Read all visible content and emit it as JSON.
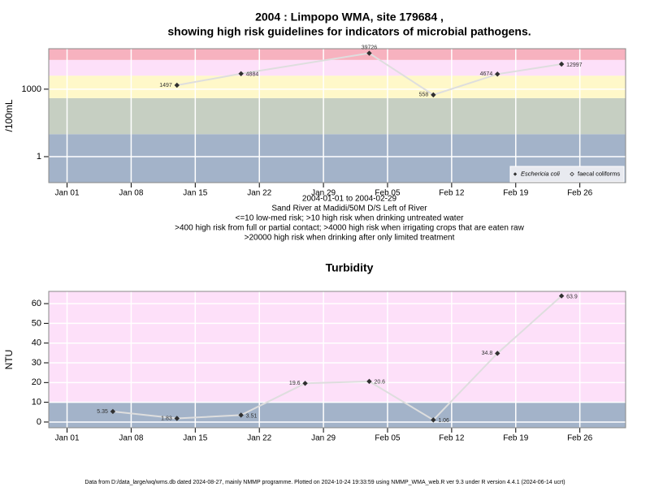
{
  "chart_data": [
    {
      "type": "line",
      "title": [
        "2004 : Limpopo WMA, site 179684 ,",
        "showing high risk guidelines for indicators of microbial pathogens."
      ],
      "notes": [
        "2004-01-01 to 2004-02-29",
        "Sand River at Madidi/50M D/S Left of River",
        "<=10 low-med risk; >10 high risk when drinking untreated water",
        ">400 high risk from full or partial contact; >4000 high risk when irrigating crops that are eaten raw",
        ">20000 high risk when drinking after only limited treatment"
      ],
      "y_label": "/100mL",
      "x": [
        "2004-01-13",
        "2004-01-20",
        "2004-02-03",
        "2004-02-10",
        "2004-02-17",
        "2004-02-24"
      ],
      "series": [
        {
          "name": "Eschericia coli",
          "color": "#303030",
          "values": [
            1497,
            4884,
            39726,
            558,
            4674,
            12997
          ]
        },
        {
          "name": "faecal coliforms",
          "color": "#303030",
          "values": [
            null,
            null,
            null,
            null,
            null,
            null
          ]
        }
      ],
      "line_color": "#dedede",
      "log_y": true,
      "ylim": [
        0.07,
        63000
      ],
      "yticks": [
        1,
        1000
      ],
      "thresholds": [
        10,
        400,
        4000,
        20000
      ],
      "band_colors": [
        "#a3b3c9",
        "#c6cfc2",
        "#fff8c9",
        "#fde0f9",
        "#f7b2bf"
      ],
      "xlim": [
        "2003-12-30",
        "2004-03-02"
      ],
      "xticks": [
        {
          "value": "2004-01-01",
          "label": "Jan 01"
        },
        {
          "value": "2004-01-08",
          "label": "Jan 08"
        },
        {
          "value": "2004-01-15",
          "label": "Jan 15"
        },
        {
          "value": "2004-01-22",
          "label": "Jan 22"
        },
        {
          "value": "2004-01-29",
          "label": "Jan 29"
        },
        {
          "value": "2004-02-05",
          "label": "Feb 05"
        },
        {
          "value": "2004-02-12",
          "label": "Feb 12"
        },
        {
          "value": "2004-02-19",
          "label": "Feb 19"
        },
        {
          "value": "2004-02-26",
          "label": "Feb 26"
        }
      ],
      "grid": true,
      "legend": "bottom-right"
    },
    {
      "type": "line",
      "title": [
        "Turbidity"
      ],
      "y_label": "NTU",
      "x": [
        "2004-01-06",
        "2004-01-13",
        "2004-01-20",
        "2004-01-27",
        "2004-02-03",
        "2004-02-10",
        "2004-02-17",
        "2004-02-24"
      ],
      "series": [
        {
          "color": "#303030",
          "values": [
            5.35,
            1.83,
            3.51,
            19.6,
            20.6,
            1.06,
            34.8,
            63.9
          ]
        }
      ],
      "line_color": "#dedede",
      "log_y": false,
      "ylim": [
        -2.9,
        66.2
      ],
      "yticks": [
        0,
        10,
        20,
        30,
        40,
        50,
        60
      ],
      "thresholds": [
        10
      ],
      "band_colors": [
        "#a3b3c9",
        "#fde0f9"
      ],
      "xlim": [
        "2003-12-30",
        "2004-03-02"
      ],
      "xticks": [
        {
          "value": "2004-01-01",
          "label": "Jan 01"
        },
        {
          "value": "2004-01-08",
          "label": "Jan 08"
        },
        {
          "value": "2004-01-15",
          "label": "Jan 15"
        },
        {
          "value": "2004-01-22",
          "label": "Jan 22"
        },
        {
          "value": "2004-01-29",
          "label": "Jan 29"
        },
        {
          "value": "2004-02-05",
          "label": "Feb 05"
        },
        {
          "value": "2004-02-12",
          "label": "Feb 12"
        },
        {
          "value": "2004-02-19",
          "label": "Feb 19"
        },
        {
          "value": "2004-02-26",
          "label": "Feb 26"
        }
      ],
      "grid": true
    }
  ],
  "footer": "Data from D:/data_large/wq/wms.db dated 2024-08-27, mainly NMMP programme. Plotted on 2024-10-24 19:33:59 using NMMP_WMA_web.R ver 9.3 under R version 4.4.1 (2024-06-14 ucrt)"
}
